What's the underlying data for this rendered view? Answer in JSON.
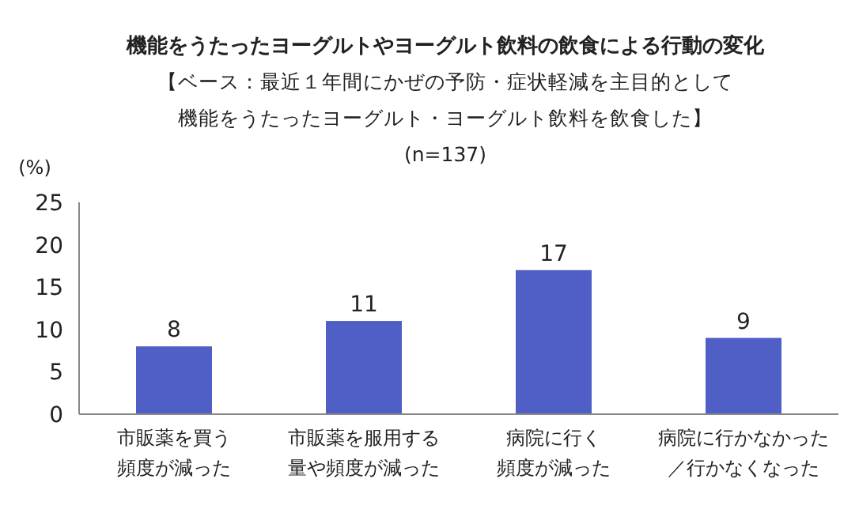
{
  "chart_data": {
    "type": "bar",
    "title": "機能をうたったヨーグルトやヨーグルト飲料の飲食による行動の変化",
    "subtitle": "【ベース：最近１年間にかぜの予防・症状軽減を主目的として機能をうたったヨーグルト・ヨーグルト飲料を飲食した】",
    "annotations": [
      "(n=137)"
    ],
    "ylabel": "(%)",
    "categories": [
      "市販薬を買う頻度が減った",
      "市販薬を服用する量や頻度が減った",
      "病院に行く頻度が減った",
      "病院に行かなかった／行かなくなった"
    ],
    "values": [
      8,
      11,
      17,
      9
    ],
    "color": "#4f5fc5",
    "ylim": [
      0,
      25
    ],
    "yticks": [
      0,
      5,
      10,
      15,
      20,
      25
    ],
    "data_labels": true,
    "grid": false
  }
}
